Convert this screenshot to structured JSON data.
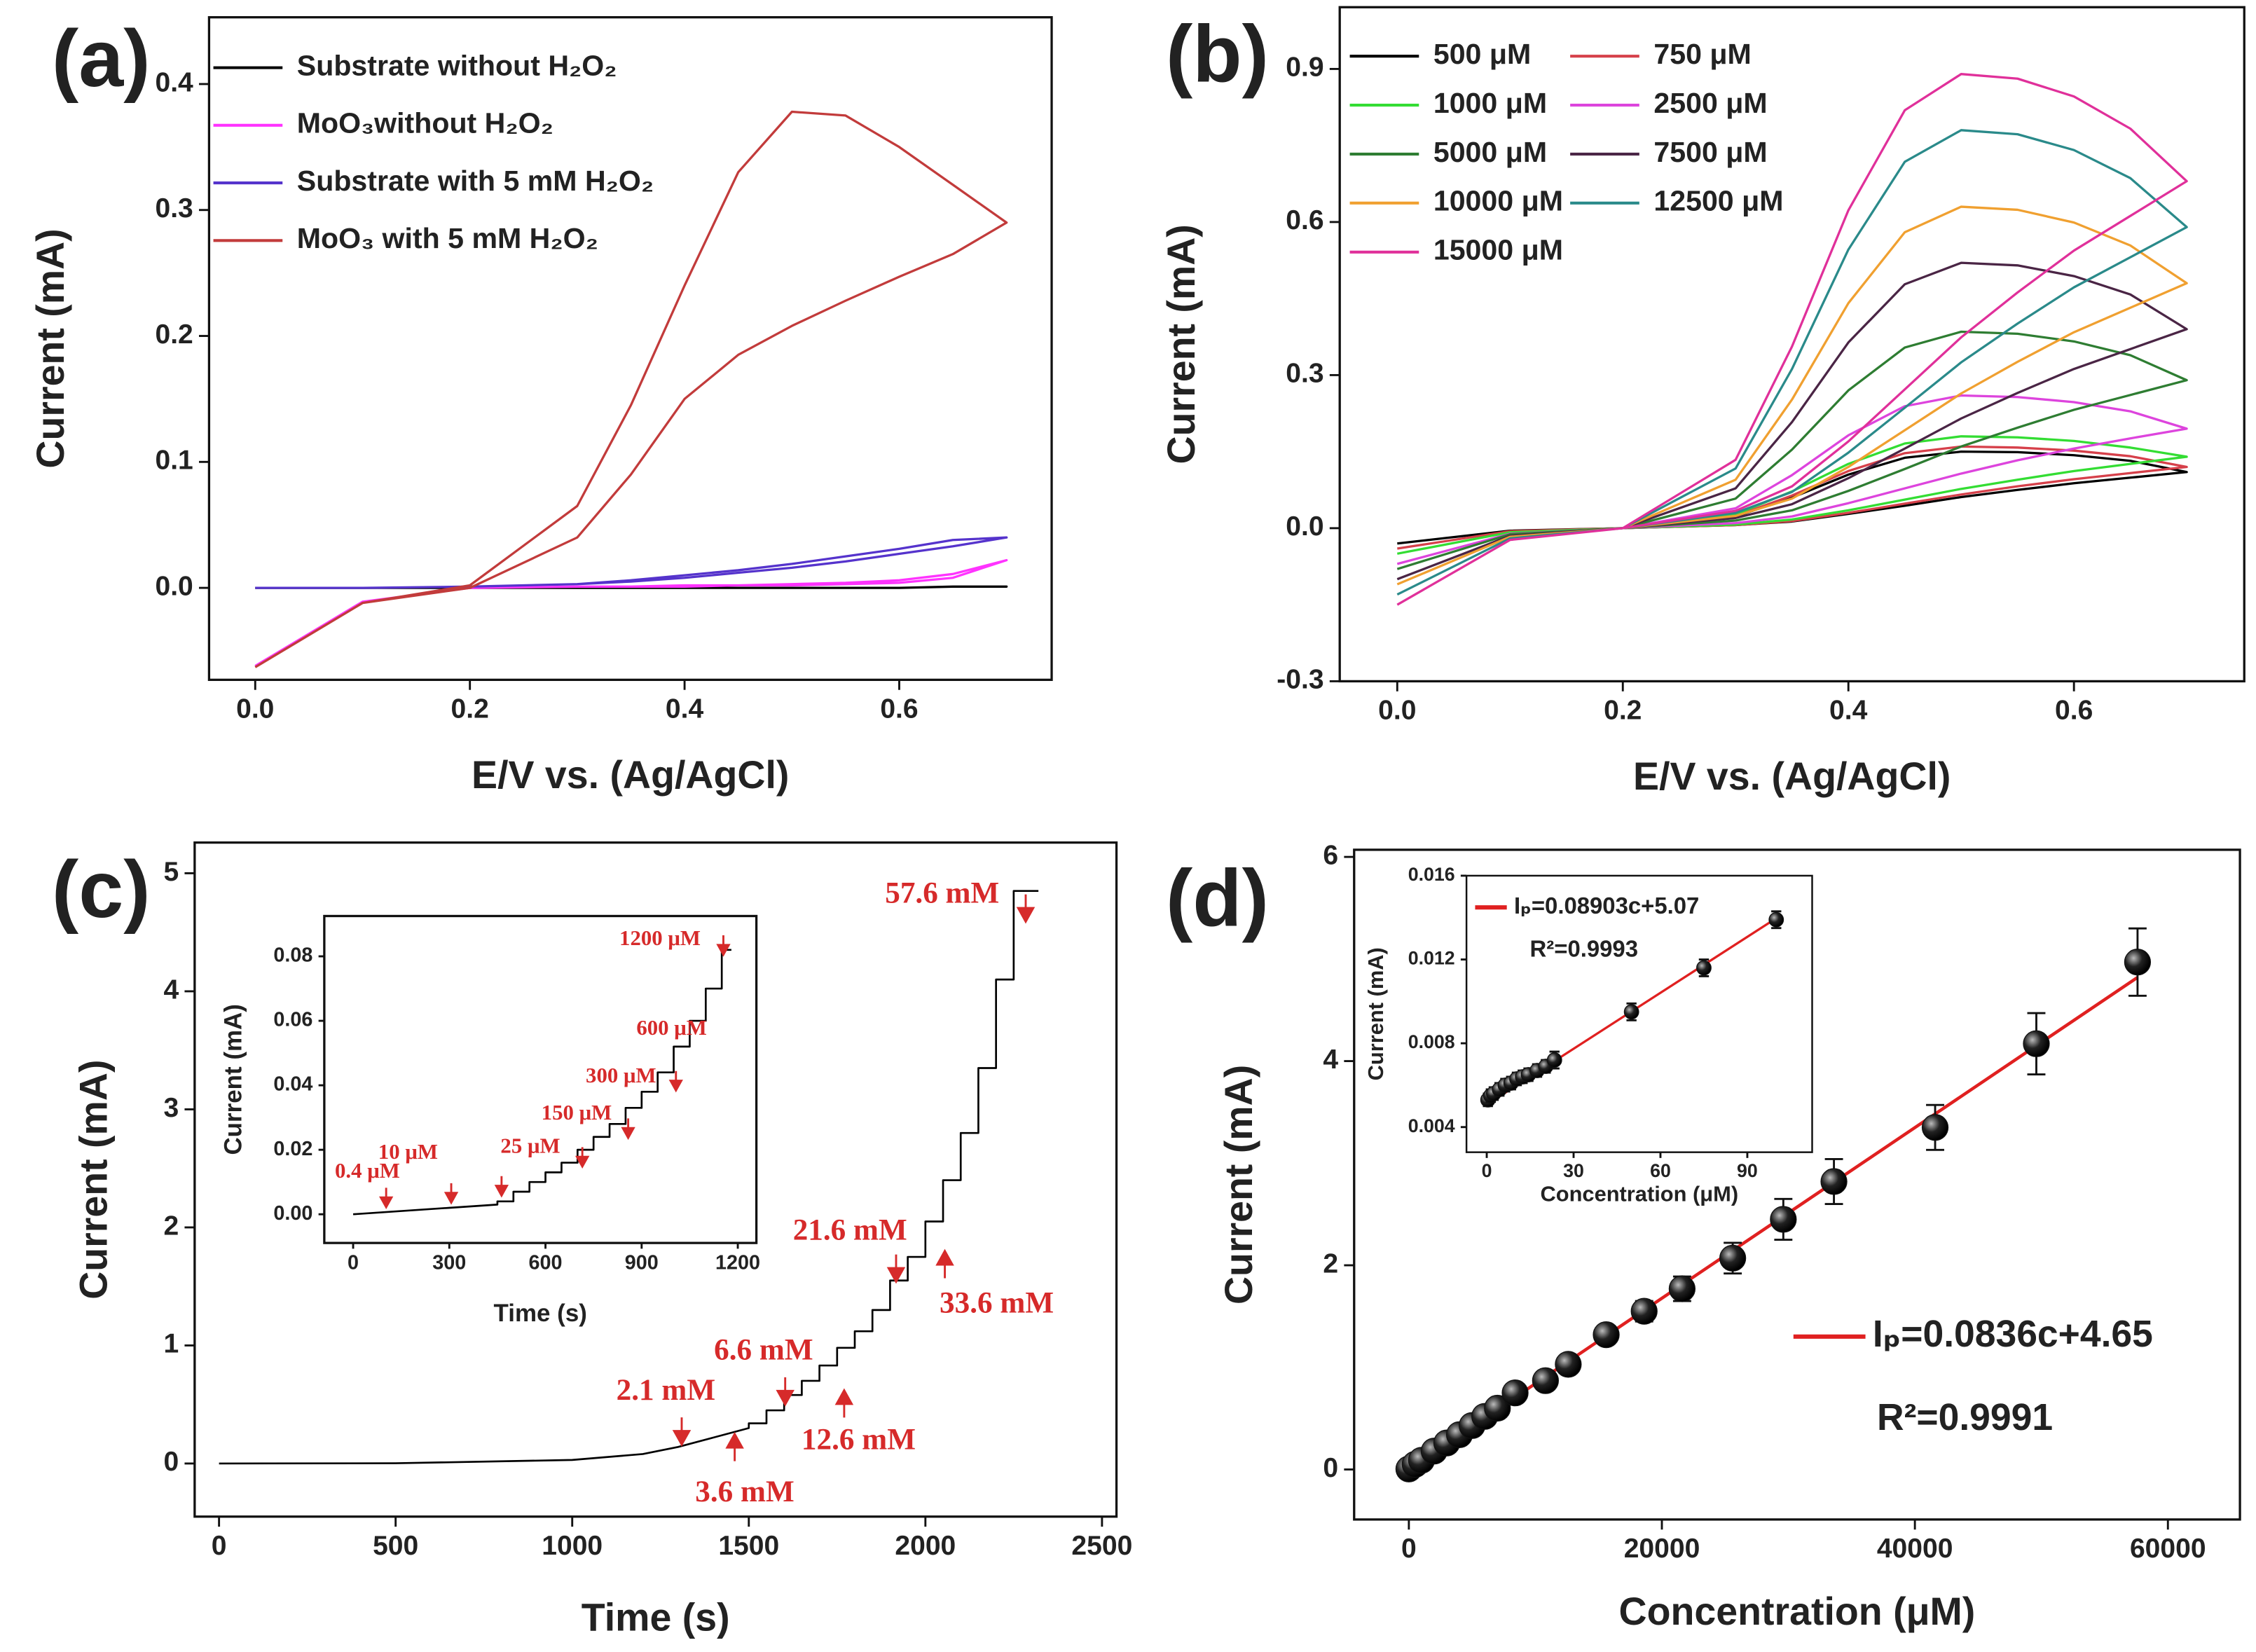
{
  "chart_data": [
    {
      "type": "line",
      "panel_label": "(a)",
      "xlabel": "E/V vs. (Ag/AgCl)",
      "ylabel": "Current (mA)",
      "xlim": [
        -0.043,
        0.742
      ],
      "ylim": [
        -0.073,
        0.453
      ],
      "xticks": [
        {
          "value": 0,
          "label": "0.0"
        },
        0.2,
        0.4,
        0.6
      ],
      "yticks": [
        {
          "value": 0,
          "label": "0.0"
        },
        0.1,
        0.2,
        0.3,
        0.4
      ],
      "x": [
        0,
        0.1,
        0.2,
        0.3,
        0.35,
        0.4,
        0.45,
        0.5,
        0.55,
        0.6,
        0.65,
        0.7,
        0.65,
        0.6,
        0.55,
        0.5,
        0.45,
        0.4,
        0.35,
        0.3,
        0.2,
        0.1,
        0
      ],
      "series": [
        {
          "name": "Substrate without H₂O₂",
          "color": "#000000",
          "values": [
            0,
            0,
            0,
            0,
            0,
            0,
            0,
            0,
            0,
            0,
            0.001,
            0.001,
            0.001,
            0,
            0,
            0,
            0,
            0,
            0,
            0,
            0,
            0,
            0
          ]
        },
        {
          "name": "MoO₃without H₂O₂",
          "color": "#ff33ff",
          "values": [
            -0.062,
            -0.011,
            0,
            0.001,
            0.001,
            0.002,
            0.002,
            0.003,
            0.004,
            0.006,
            0.011,
            0.022,
            0.008,
            0.004,
            0.003,
            0.002,
            0.002,
            0.001,
            0.001,
            0.001,
            0,
            -0.011,
            -0.062
          ]
        },
        {
          "name": "Substrate with 5 mM H₂O₂",
          "color": "#5533cc",
          "values": [
            0,
            0,
            0.001,
            0.003,
            0.005,
            0.008,
            0.012,
            0.016,
            0.021,
            0.027,
            0.033,
            0.04,
            0.038,
            0.031,
            0.025,
            0.019,
            0.014,
            0.01,
            0.006,
            0.003,
            0.001,
            0,
            0
          ]
        },
        {
          "name": "MoO₃ with 5 mM H₂O₂",
          "color": "#c23b3b",
          "values": [
            -0.063,
            -0.012,
            0,
            0.04,
            0.09,
            0.15,
            0.185,
            0.208,
            0.228,
            0.247,
            0.265,
            0.29,
            0.32,
            0.35,
            0.375,
            0.378,
            0.33,
            0.24,
            0.145,
            0.065,
            0.002,
            -0.012,
            -0.063
          ]
        }
      ]
    },
    {
      "type": "line",
      "panel_label": "(b)",
      "xlabel": "E/V vs. (Ag/AgCl)",
      "ylabel": "Current (mA)",
      "xlim": [
        -0.051,
        0.751
      ],
      "ylim": [
        -0.3,
        1.021
      ],
      "xticks": [
        {
          "value": 0,
          "label": "0.0"
        },
        0.2,
        0.4,
        0.6
      ],
      "yticks": [
        -0.3,
        {
          "value": 0,
          "label": "0.0"
        },
        0.3,
        0.6,
        0.9
      ],
      "x": [
        0,
        0.1,
        0.2,
        0.3,
        0.35,
        0.4,
        0.45,
        0.5,
        0.55,
        0.6,
        0.65,
        0.7,
        0.65,
        0.6,
        0.55,
        0.5,
        0.45,
        0.4,
        0.35,
        0.3,
        0.2,
        0.1,
        0
      ],
      "series": [
        {
          "name": "500 μM",
          "color": "#000000",
          "values": [
            -0.03,
            -0.005,
            0,
            0.006,
            0.013,
            0.028,
            0.044,
            0.061,
            0.075,
            0.088,
            0.099,
            0.11,
            0.132,
            0.143,
            0.149,
            0.15,
            0.138,
            0.105,
            0.06,
            0.023,
            0,
            -0.005,
            -0.03
          ]
        },
        {
          "name": "750 μM",
          "color": "#d6404a",
          "values": [
            -0.04,
            -0.006,
            0,
            0.006,
            0.014,
            0.03,
            0.048,
            0.066,
            0.082,
            0.096,
            0.108,
            0.12,
            0.141,
            0.152,
            0.158,
            0.16,
            0.147,
            0.112,
            0.064,
            0.024,
            0,
            -0.006,
            -0.04
          ]
        },
        {
          "name": "1000 μM",
          "color": "#33dd33",
          "values": [
            -0.05,
            -0.008,
            0,
            0.007,
            0.017,
            0.035,
            0.056,
            0.077,
            0.095,
            0.112,
            0.126,
            0.14,
            0.158,
            0.171,
            0.178,
            0.18,
            0.166,
            0.126,
            0.072,
            0.027,
            0,
            -0.008,
            -0.05
          ]
        },
        {
          "name": "2500 μM",
          "color": "#dd44dd",
          "values": [
            -0.07,
            -0.011,
            0,
            0.01,
            0.023,
            0.049,
            0.078,
            0.107,
            0.133,
            0.156,
            0.176,
            0.195,
            0.229,
            0.247,
            0.257,
            0.26,
            0.239,
            0.182,
            0.104,
            0.039,
            0,
            -0.011,
            -0.07
          ]
        },
        {
          "name": "5000 μM",
          "color": "#2e7d32",
          "values": [
            -0.08,
            -0.012,
            0,
            0.015,
            0.035,
            0.073,
            0.116,
            0.16,
            0.197,
            0.232,
            0.261,
            0.29,
            0.339,
            0.366,
            0.381,
            0.385,
            0.354,
            0.27,
            0.154,
            0.058,
            0,
            -0.012,
            -0.08
          ]
        },
        {
          "name": "7500 μM",
          "color": "#4a2545",
          "values": [
            -0.1,
            -0.015,
            0,
            0.02,
            0.047,
            0.098,
            0.156,
            0.215,
            0.265,
            0.312,
            0.351,
            0.39,
            0.458,
            0.494,
            0.515,
            0.52,
            0.478,
            0.364,
            0.208,
            0.078,
            0,
            -0.015,
            -0.1
          ]
        },
        {
          "name": "10000 μM",
          "color": "#f0a030",
          "values": [
            -0.11,
            -0.017,
            0,
            0.024,
            0.058,
            0.12,
            0.192,
            0.264,
            0.326,
            0.384,
            0.432,
            0.48,
            0.554,
            0.599,
            0.624,
            0.63,
            0.58,
            0.441,
            0.252,
            0.095,
            0,
            -0.017,
            -0.11
          ]
        },
        {
          "name": "12500 μM",
          "color": "#2a8a8a",
          "values": [
            -0.13,
            -0.02,
            0,
            0.03,
            0.071,
            0.148,
            0.236,
            0.325,
            0.401,
            0.472,
            0.531,
            0.59,
            0.686,
            0.741,
            0.772,
            0.78,
            0.718,
            0.546,
            0.312,
            0.117,
            0,
            -0.02,
            -0.13
          ]
        },
        {
          "name": "15000 μM",
          "color": "#e0309a",
          "values": [
            -0.15,
            -0.023,
            0,
            0.034,
            0.082,
            0.17,
            0.272,
            0.374,
            0.462,
            0.544,
            0.612,
            0.68,
            0.783,
            0.846,
            0.881,
            0.89,
            0.819,
            0.623,
            0.356,
            0.134,
            0,
            -0.023,
            -0.15
          ]
        }
      ]
    },
    {
      "type": "line",
      "panel_label": "(c)",
      "xlabel": "Time (s)",
      "ylabel": "Current (mA)",
      "xlim": [
        -69,
        2541
      ],
      "ylim": [
        -0.45,
        5.26
      ],
      "xticks": [
        0,
        500,
        1000,
        1500,
        2000,
        2500
      ],
      "yticks": [
        0,
        1,
        2,
        3,
        4,
        5
      ],
      "x": [
        0,
        500,
        1000,
        1200,
        1300,
        1400,
        1500,
        1500,
        1550,
        1550,
        1600,
        1600,
        1650,
        1650,
        1700,
        1700,
        1750,
        1750,
        1800,
        1800,
        1850,
        1850,
        1900,
        1900,
        1950,
        1950,
        2000,
        2000,
        2050,
        2050,
        2100,
        2100,
        2150,
        2150,
        2200,
        2200,
        2250,
        2250,
        2320
      ],
      "series": [
        {
          "color": "#000000",
          "values": [
            0,
            0.002,
            0.03,
            0.08,
            0.14,
            0.22,
            0.3,
            0.34,
            0.34,
            0.45,
            0.45,
            0.58,
            0.58,
            0.7,
            0.7,
            0.83,
            0.83,
            0.98,
            0.98,
            1.12,
            1.12,
            1.3,
            1.3,
            1.55,
            1.55,
            1.75,
            1.75,
            2.05,
            2.05,
            2.4,
            2.4,
            2.8,
            2.8,
            3.35,
            3.35,
            4.1,
            4.1,
            4.85,
            4.85
          ]
        }
      ],
      "annotations": [
        {
          "text": "2.1 mM",
          "x": 1310,
          "y": 0.16
        },
        {
          "text": "3.6 mM",
          "x": 1460,
          "y": 0.25
        },
        {
          "text": "6.6 mM",
          "x": 1603,
          "y": 0.5
        },
        {
          "text": "12.6 mM",
          "x": 1770,
          "y": 0.62
        },
        {
          "text": "21.6 mM",
          "x": 1917,
          "y": 1.54
        },
        {
          "text": "33.6 mM",
          "x": 2055,
          "y": 1.8
        },
        {
          "text": "57.6 mM",
          "x": 2284,
          "y": 4.59
        }
      ],
      "inset": {
        "type": "line",
        "xlabel": "Time (s)",
        "ylabel": "Current (mA)",
        "xlim": [
          -90,
          1258
        ],
        "ylim": [
          -0.0089,
          0.0925
        ],
        "xticks": [
          0,
          300,
          600,
          900,
          1200
        ],
        "yticks": [
          {
            "value": 0,
            "label": "0.00"
          },
          {
            "value": 0.02,
            "label": "0.02"
          },
          {
            "value": 0.04,
            "label": "0.04"
          },
          {
            "value": 0.06,
            "label": "0.06"
          },
          {
            "value": 0.08,
            "label": "0.08"
          }
        ],
        "x": [
          0,
          300,
          450,
          450,
          500,
          500,
          550,
          550,
          600,
          600,
          650,
          650,
          700,
          700,
          750,
          750,
          800,
          800,
          850,
          850,
          900,
          900,
          950,
          950,
          1000,
          1000,
          1050,
          1050,
          1100,
          1100,
          1150,
          1150,
          1180
        ],
        "series": [
          {
            "color": "#000000",
            "values": [
              0,
              0.002,
              0.003,
              0.004,
              0.004,
              0.007,
              0.007,
              0.01,
              0.01,
              0.013,
              0.013,
              0.016,
              0.016,
              0.02,
              0.02,
              0.024,
              0.024,
              0.028,
              0.028,
              0.033,
              0.033,
              0.038,
              0.038,
              0.044,
              0.044,
              0.052,
              0.052,
              0.06,
              0.06,
              0.07,
              0.07,
              0.082,
              0.082
            ]
          }
        ],
        "annotations": [
          {
            "text": "0.4 μM",
            "x": 103,
            "y": 0.0022
          },
          {
            "text": "10 μM",
            "x": 306,
            "y": 0.0036
          },
          {
            "text": "25 μM",
            "x": 463,
            "y": 0.0058
          },
          {
            "text": "150 μM",
            "x": 715,
            "y": 0.0148
          },
          {
            "text": "300 μM",
            "x": 858,
            "y": 0.0237
          },
          {
            "text": "600 μM",
            "x": 1007,
            "y": 0.0384
          },
          {
            "text": "1200 μM",
            "x": 1155,
            "y": 0.0805
          }
        ]
      }
    },
    {
      "type": "scatter",
      "panel_label": "(d)",
      "xlabel": "Concentration (μM)",
      "ylabel": "Current (mA)",
      "xlim": [
        -4326,
        65694
      ],
      "ylim": [
        -0.49,
        6.07
      ],
      "xticks": [
        0,
        20000,
        40000,
        60000
      ],
      "yticks": [
        0,
        2,
        4,
        6
      ],
      "color": "#111111",
      "x": [
        0,
        500,
        1000,
        2000,
        3000,
        4000,
        5000,
        6000,
        7000,
        8400,
        10800,
        12600,
        15600,
        18600,
        21600,
        25600,
        29600,
        33600,
        41600,
        49600,
        57600
      ],
      "values": [
        0.005,
        0.05,
        0.09,
        0.18,
        0.26,
        0.34,
        0.43,
        0.52,
        0.6,
        0.75,
        0.87,
        1.03,
        1.32,
        1.55,
        1.77,
        2.07,
        2.45,
        2.82,
        3.35,
        4.17,
        4.97
      ],
      "errors": [
        0.02,
        0.03,
        0.03,
        0.03,
        0.04,
        0.04,
        0.04,
        0.05,
        0.05,
        0.06,
        0.06,
        0.07,
        0.08,
        0.1,
        0.12,
        0.15,
        0.2,
        0.22,
        0.22,
        0.3,
        0.33
      ],
      "fit": {
        "name": "Iₚ=0.0836c+4.65",
        "color": "#e02020",
        "x": [
          0,
          57600
        ],
        "values": [
          0.005,
          4.82
        ]
      },
      "r_squared": "R²=0.9991",
      "inset": {
        "type": "scatter",
        "xlabel": "Concentration (μM)",
        "ylabel": "Current (mA)",
        "xlim": [
          -7,
          112.4
        ],
        "ylim": [
          0.0028,
          0.016
        ],
        "xticks": [
          0,
          30,
          60,
          90
        ],
        "yticks": [
          0.004,
          0.008,
          0.012,
          0.016
        ],
        "color": "#111111",
        "x": [
          0.4,
          1.4,
          2.4,
          4.4,
          6.4,
          8.4,
          10.4,
          12.4,
          14.4,
          17.4,
          20.4,
          23.4,
          50,
          75,
          100
        ],
        "values": [
          0.0053,
          0.0055,
          0.0056,
          0.0058,
          0.006,
          0.0061,
          0.0063,
          0.0064,
          0.0065,
          0.0067,
          0.0069,
          0.0072,
          0.0095,
          0.0116,
          0.0139
        ],
        "errors": [
          0.0003,
          0.0003,
          0.0003,
          0.0003,
          0.0003,
          0.0003,
          0.0003,
          0.0003,
          0.0003,
          0.0003,
          0.0003,
          0.0004,
          0.0004,
          0.0004,
          0.0004
        ],
        "fit": {
          "name": "Iₚ=0.08903c+5.07",
          "color": "#e02020",
          "x": [
            0,
            100
          ],
          "values": [
            0.00507,
            0.01397
          ]
        },
        "r_squared": "R²=0.9993"
      }
    }
  ]
}
